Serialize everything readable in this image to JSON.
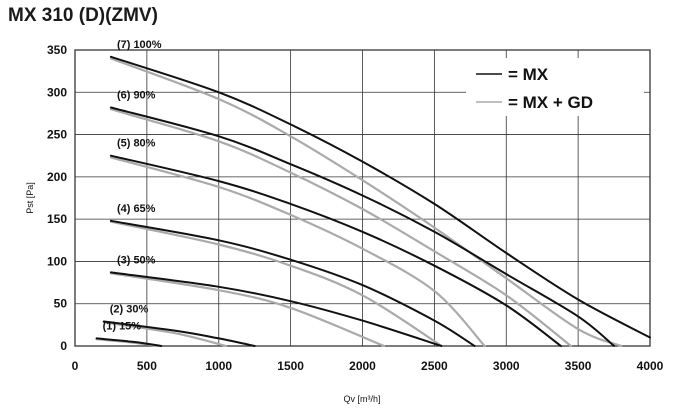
{
  "title": "MX 310 (D)(ZMV)",
  "chart_data": {
    "type": "line",
    "xlabel": "Qv [m³/h]",
    "ylabel": "Pst [Pa]",
    "xlim": [
      0,
      4000
    ],
    "ylim": [
      0,
      350
    ],
    "xticks": [
      "0",
      "500",
      "1000",
      "1500",
      "2000",
      "2500",
      "3000",
      "3500",
      "4000"
    ],
    "yticks": [
      "0",
      "50",
      "100",
      "150",
      "200",
      "250",
      "300",
      "350"
    ],
    "grid": true,
    "legend_position": "top-right",
    "legend": [
      {
        "label": "= MX",
        "color": "#111111"
      },
      {
        "label": "= MX + GD",
        "color": "#aaaaaa"
      }
    ],
    "series": [
      {
        "label": "(7) 100%",
        "color": "#111111",
        "x": [
          250,
          1000,
          1500,
          2000,
          2500,
          3000,
          3500,
          4000
        ],
        "y": [
          342,
          300,
          262,
          218,
          168,
          110,
          55,
          10
        ]
      },
      {
        "label": "",
        "color": "#aaaaaa",
        "x": [
          250,
          1000,
          1500,
          2000,
          2500,
          3000,
          3500,
          3800
        ],
        "y": [
          340,
          292,
          248,
          196,
          140,
          80,
          20,
          0
        ]
      },
      {
        "label": "(6) 90%",
        "color": "#111111",
        "x": [
          250,
          1000,
          1500,
          2000,
          2500,
          3000,
          3500,
          3750
        ],
        "y": [
          282,
          248,
          215,
          178,
          135,
          85,
          35,
          0
        ]
      },
      {
        "label": "",
        "color": "#aaaaaa",
        "x": [
          250,
          1000,
          1500,
          2000,
          2500,
          3000,
          3450
        ],
        "y": [
          280,
          242,
          205,
          162,
          112,
          60,
          0
        ]
      },
      {
        "label": "(5) 80%",
        "color": "#111111",
        "x": [
          250,
          1000,
          1500,
          2000,
          2500,
          3000,
          3380
        ],
        "y": [
          225,
          195,
          168,
          135,
          95,
          48,
          0
        ]
      },
      {
        "label": "",
        "color": "#aaaaaa",
        "x": [
          250,
          1000,
          1500,
          2000,
          2500,
          2850
        ],
        "y": [
          223,
          188,
          155,
          115,
          65,
          0
        ]
      },
      {
        "label": "(4) 65%",
        "color": "#111111",
        "x": [
          250,
          1000,
          1500,
          2000,
          2500,
          2780
        ],
        "y": [
          148,
          125,
          102,
          72,
          30,
          0
        ]
      },
      {
        "label": "",
        "color": "#aaaaaa",
        "x": [
          250,
          1000,
          1500,
          2000,
          2550
        ],
        "y": [
          147,
          120,
          95,
          60,
          0
        ]
      },
      {
        "label": "(3) 50%",
        "color": "#111111",
        "x": [
          250,
          1000,
          1500,
          2000,
          2550
        ],
        "y": [
          87,
          70,
          53,
          30,
          0
        ]
      },
      {
        "label": "",
        "color": "#aaaaaa",
        "x": [
          250,
          1000,
          1500,
          2150
        ],
        "y": [
          86,
          66,
          45,
          0
        ]
      },
      {
        "label": "(2) 30%",
        "color": "#111111",
        "x": [
          200,
          700,
          1000,
          1250
        ],
        "y": [
          29,
          18,
          9,
          0
        ]
      },
      {
        "label": "",
        "color": "#aaaaaa",
        "x": [
          200,
          700,
          1050
        ],
        "y": [
          28,
          15,
          0
        ]
      },
      {
        "label": "(1) 15%",
        "color": "#111111",
        "x": [
          150,
          400,
          600
        ],
        "y": [
          9,
          5,
          0
        ]
      },
      {
        "label": "",
        "color": "#aaaaaa",
        "x": [
          150,
          400,
          580
        ],
        "y": [
          8,
          4,
          0
        ]
      }
    ]
  }
}
